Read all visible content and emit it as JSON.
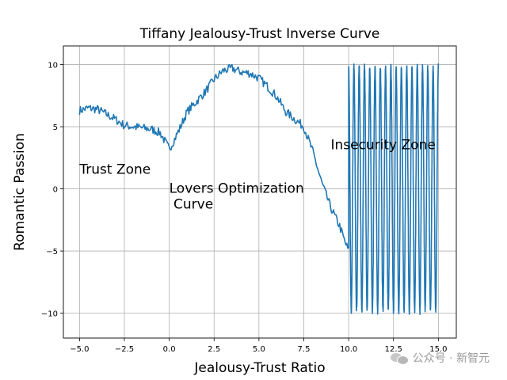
{
  "chart_data": {
    "type": "line",
    "title": "Tiffany Jealousy-Trust Inverse Curve",
    "xlabel": "Jealousy-Trust Ratio",
    "ylabel": "Romantic Passion",
    "xlim": [
      -5.9,
      16.0
    ],
    "ylim": [
      -12.0,
      11.5
    ],
    "xticks": [
      -5.0,
      -2.5,
      0.0,
      2.5,
      5.0,
      7.5,
      10.0,
      12.5,
      15.0
    ],
    "xtick_labels": [
      "−5.0",
      "−2.5",
      "0.0",
      "2.5",
      "5.0",
      "7.5",
      "10.0",
      "12.5",
      "15.0"
    ],
    "yticks": [
      -10,
      -5,
      0,
      5,
      10
    ],
    "ytick_labels": [
      "−10",
      "−5",
      "0",
      "5",
      "10"
    ],
    "grid": true,
    "line_color": "#1f77b4",
    "series": [
      {
        "x": [
          -5.0,
          -4.5,
          -4.0,
          -3.5,
          -3.0,
          -2.5,
          -2.0,
          -1.5,
          -1.0,
          -0.5,
          0.0,
          0.3,
          0.6,
          1.0,
          1.5,
          2.0,
          2.5,
          3.0,
          3.5,
          4.0,
          4.5,
          5.0,
          5.5,
          6.0,
          6.5,
          7.0,
          7.5,
          8.0,
          8.5,
          9.0,
          9.5,
          9.8,
          10.0
        ],
        "values": [
          6.3,
          6.5,
          6.4,
          6.0,
          5.6,
          5.1,
          5.0,
          4.9,
          4.8,
          4.5,
          3.2,
          4.0,
          4.9,
          6.2,
          7.0,
          7.8,
          8.8,
          9.5,
          9.7,
          9.4,
          9.3,
          8.9,
          8.2,
          7.4,
          6.2,
          5.6,
          5.0,
          3.0,
          0.5,
          -1.5,
          -3.0,
          -4.3,
          -5.0
        ]
      }
    ],
    "noise_amplitude": 0.35,
    "oscillation": {
      "x_start": 10.0,
      "x_end": 15.0,
      "cycles": 17,
      "amplitude": 9.8,
      "center": 0.0
    },
    "annotations": [
      {
        "text": "Trust Zone",
        "x": -5.0,
        "y": 1.2
      },
      {
        "text": "Lovers Optimization",
        "x": 0.0,
        "y": -0.3
      },
      {
        "text": " Curve",
        "x": 0.0,
        "y": -1.6
      },
      {
        "text": "Insecurity Zone",
        "x": 9.0,
        "y": 3.2
      }
    ]
  },
  "watermark": {
    "text": "公众号 · 新智元",
    "icon": "wechat-icon"
  }
}
